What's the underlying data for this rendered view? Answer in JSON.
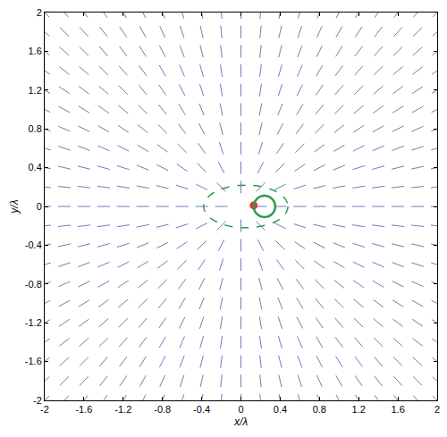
{
  "chart_data": {
    "type": "quiver",
    "xlabel": "x/λ",
    "ylabel": "y/λ",
    "xlim": [
      -2,
      2
    ],
    "ylim": [
      -2,
      2
    ],
    "xticks": [
      -2,
      -1.6,
      -1.2,
      -0.8,
      -0.4,
      0,
      0.4,
      0.8,
      1.2,
      1.6,
      2
    ],
    "yticks": [
      -2,
      -1.6,
      -1.2,
      -0.8,
      -0.4,
      0,
      0.4,
      0.8,
      1.2,
      1.6,
      2
    ],
    "color": "#4a5aa8",
    "x": [
      -2,
      -1.8,
      -1.6,
      -1.4,
      -1.2,
      -1,
      -0.8,
      -0.6,
      -0.4,
      -0.2,
      0,
      0.2,
      0.4,
      0.6,
      0.8,
      1,
      1.2,
      1.4,
      1.6,
      1.8,
      2
    ],
    "y": [
      -2,
      -1.8,
      -1.6,
      -1.4,
      -1.2,
      -1,
      -0.8,
      -0.6,
      -0.4,
      -0.2,
      0,
      0.2,
      0.4,
      0.6,
      0.8,
      1,
      1.2,
      1.4,
      1.6,
      1.8,
      2
    ],
    "angles": [
      [
        45,
        48,
        51,
        55,
        59,
        63,
        68,
        73,
        79,
        84,
        90,
        96,
        101,
        107,
        112,
        117,
        121,
        125,
        129,
        132,
        135
      ],
      [
        42,
        45,
        48,
        52,
        56,
        61,
        66,
        72,
        77,
        84,
        90,
        96,
        103,
        108,
        114,
        119,
        124,
        128,
        132,
        135,
        138
      ],
      [
        39,
        42,
        45,
        49,
        53,
        58,
        63,
        69,
        76,
        83,
        90,
        97,
        104,
        111,
        117,
        122,
        127,
        131,
        135,
        138,
        141
      ],
      [
        35,
        38,
        41,
        45,
        49,
        54,
        60,
        67,
        74,
        82,
        90,
        98,
        106,
        113,
        120,
        126,
        131,
        135,
        139,
        142,
        145
      ],
      [
        31,
        34,
        37,
        41,
        45,
        50,
        56,
        63,
        72,
        81,
        90,
        99,
        108,
        117,
        124,
        130,
        135,
        139,
        143,
        146,
        149
      ],
      [
        27,
        29,
        32,
        36,
        40,
        45,
        51,
        59,
        68,
        79,
        90,
        101,
        112,
        121,
        129,
        135,
        140,
        144,
        148,
        151,
        153
      ],
      [
        22,
        24,
        27,
        30,
        34,
        39,
        45,
        53,
        63,
        76,
        90,
        104,
        117,
        127,
        135,
        141,
        146,
        150,
        153,
        156,
        158
      ],
      [
        17,
        18,
        21,
        23,
        27,
        31,
        37,
        45,
        56,
        72,
        90,
        108,
        124,
        135,
        143,
        149,
        153,
        157,
        159,
        162,
        163
      ],
      [
        11,
        13,
        14,
        16,
        18,
        22,
        27,
        34,
        45,
        63,
        90,
        117,
        135,
        146,
        153,
        158,
        162,
        164,
        166,
        167,
        169
      ],
      [
        6,
        6,
        7,
        8,
        9,
        11,
        14,
        18,
        27,
        45,
        90,
        135,
        153,
        162,
        166,
        169,
        171,
        172,
        173,
        174,
        174
      ],
      [
        0,
        0,
        0,
        0,
        0,
        0,
        0,
        0,
        0,
        0,
        null,
        0,
        0,
        0,
        0,
        0,
        0,
        0,
        0,
        0,
        0
      ],
      [
        174,
        174,
        173,
        172,
        171,
        169,
        166,
        162,
        153,
        135,
        90,
        45,
        27,
        18,
        14,
        11,
        9,
        8,
        7,
        6,
        6
      ],
      [
        169,
        167,
        166,
        164,
        162,
        158,
        153,
        146,
        135,
        117,
        90,
        63,
        45,
        34,
        27,
        22,
        18,
        16,
        14,
        13,
        11
      ],
      [
        163,
        162,
        159,
        157,
        153,
        149,
        143,
        135,
        124,
        108,
        90,
        72,
        56,
        45,
        37,
        31,
        27,
        23,
        21,
        18,
        17
      ],
      [
        158,
        156,
        153,
        150,
        146,
        141,
        135,
        127,
        117,
        104,
        90,
        76,
        63,
        53,
        45,
        39,
        34,
        30,
        27,
        24,
        22
      ],
      [
        153,
        151,
        148,
        144,
        140,
        135,
        129,
        121,
        112,
        101,
        90,
        79,
        68,
        59,
        51,
        45,
        40,
        36,
        32,
        29,
        27
      ],
      [
        149,
        146,
        143,
        139,
        135,
        130,
        124,
        117,
        108,
        99,
        90,
        81,
        72,
        63,
        56,
        50,
        45,
        41,
        37,
        34,
        31
      ],
      [
        145,
        142,
        139,
        135,
        131,
        126,
        120,
        113,
        106,
        98,
        90,
        82,
        74,
        67,
        60,
        54,
        49,
        45,
        41,
        38,
        35
      ],
      [
        141,
        138,
        135,
        131,
        127,
        122,
        117,
        111,
        104,
        97,
        90,
        83,
        76,
        69,
        63,
        58,
        53,
        49,
        45,
        42,
        39
      ],
      [
        138,
        135,
        132,
        128,
        124,
        119,
        114,
        108,
        103,
        96,
        90,
        84,
        77,
        72,
        66,
        61,
        56,
        52,
        48,
        45,
        42
      ],
      [
        135,
        132,
        129,
        125,
        121,
        117,
        112,
        107,
        101,
        96,
        90,
        84,
        79,
        73,
        68,
        63,
        59,
        55,
        51,
        48,
        45
      ]
    ],
    "shapes": [
      {
        "type": "ellipse",
        "center": [
          0.05,
          0
        ],
        "radii": [
          0.43,
          0.22
        ],
        "color": "#2e9a4e",
        "line_style": "dashed"
      },
      {
        "type": "circle",
        "center": [
          0.24,
          0
        ],
        "radii": [
          0.11,
          0.11
        ],
        "color": "#2e9a4e",
        "line_style": "solid"
      }
    ],
    "point": {
      "x": 0.13,
      "y": 0.01,
      "color": "#e8332f",
      "marker": "circle"
    }
  }
}
